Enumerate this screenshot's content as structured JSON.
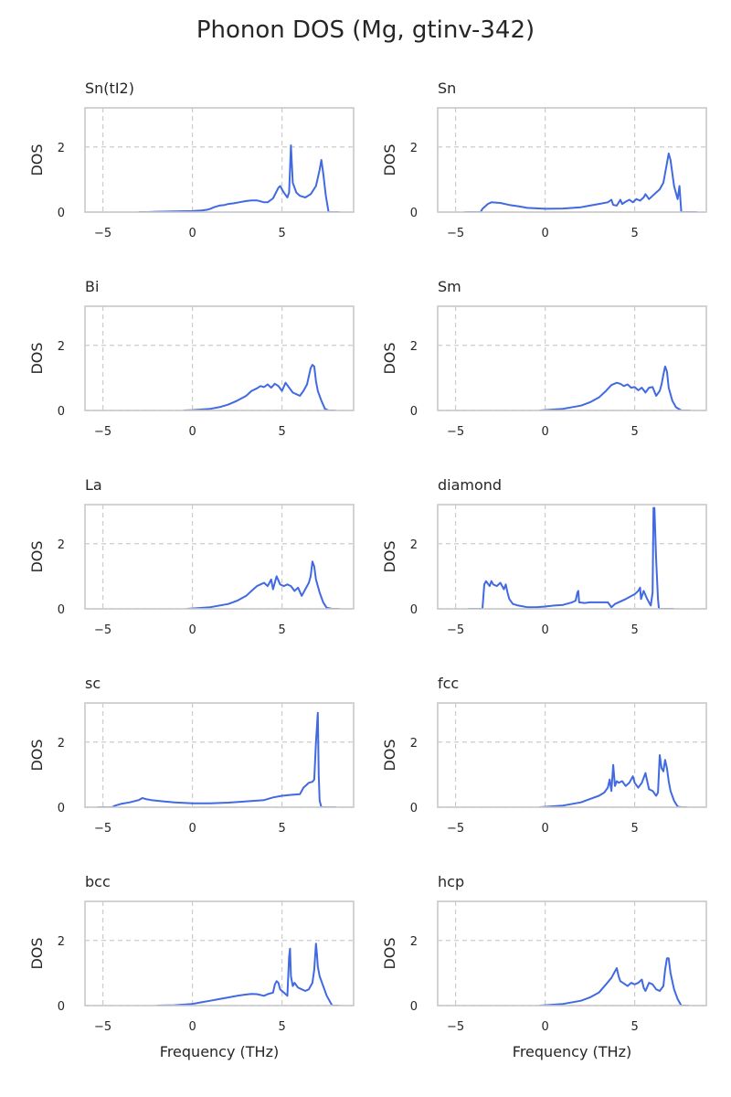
{
  "figure_title": "Phonon DOS (Mg, gtinv-342)",
  "colors": {
    "line": "#4169e1",
    "grid": "#cccccc",
    "spine": "#c8c8c8",
    "text": "#262626"
  },
  "chart_data": [
    {
      "type": "line",
      "title": "Sn(tI2)",
      "xlabel": "",
      "ylabel": "DOS",
      "xlim": [
        -6,
        9
      ],
      "ylim": [
        0,
        3.2
      ],
      "xticks": [
        -5,
        0,
        5
      ],
      "xtick_labels": [
        "−5",
        "0",
        "5"
      ],
      "yticks": [
        0,
        2
      ],
      "ytick_labels": [
        "0",
        "2"
      ],
      "grid": true,
      "x": [
        -3,
        -2.5,
        -2,
        -1,
        0,
        0.5,
        0.8,
        1,
        1.2,
        1.5,
        1.8,
        2,
        2.3,
        2.6,
        3,
        3.3,
        3.6,
        4,
        4.2,
        4.5,
        4.8,
        4.9,
        5.1,
        5.3,
        5.4,
        5.5,
        5.6,
        5.8,
        6,
        6.3,
        6.6,
        6.9,
        7.1,
        7.2,
        7.3,
        7.45,
        7.6,
        7.8,
        8.2
      ],
      "y": [
        0,
        0,
        0.01,
        0.02,
        0.03,
        0.05,
        0.07,
        0.1,
        0.15,
        0.2,
        0.22,
        0.25,
        0.27,
        0.3,
        0.34,
        0.36,
        0.36,
        0.3,
        0.3,
        0.42,
        0.75,
        0.8,
        0.6,
        0.45,
        0.6,
        2.05,
        0.9,
        0.6,
        0.5,
        0.45,
        0.55,
        0.8,
        1.3,
        1.6,
        1.2,
        0.5,
        0,
        0,
        0
      ]
    },
    {
      "type": "line",
      "title": "Sn",
      "xlabel": "",
      "ylabel": "DOS",
      "xlim": [
        -6,
        9
      ],
      "ylim": [
        0,
        3.2
      ],
      "xticks": [
        -5,
        0,
        5
      ],
      "xtick_labels": [
        "−5",
        "0",
        "5"
      ],
      "yticks": [
        0,
        2
      ],
      "ytick_labels": [
        "0",
        "2"
      ],
      "grid": true,
      "x": [
        -4.5,
        -3.6,
        -3.5,
        -3.2,
        -3,
        -2.5,
        -2,
        -1.5,
        -1,
        0,
        1,
        2,
        2.5,
        3,
        3.5,
        3.7,
        3.8,
        4,
        4.2,
        4.3,
        4.5,
        4.7,
        4.9,
        5.1,
        5.3,
        5.5,
        5.6,
        5.8,
        6,
        6.2,
        6.4,
        6.6,
        6.8,
        6.9,
        7,
        7.2,
        7.4,
        7.5,
        7.6,
        7.7,
        8,
        8.5
      ],
      "y": [
        0,
        0,
        0.1,
        0.25,
        0.3,
        0.28,
        0.22,
        0.18,
        0.13,
        0.1,
        0.11,
        0.15,
        0.2,
        0.25,
        0.3,
        0.38,
        0.22,
        0.2,
        0.38,
        0.25,
        0.32,
        0.38,
        0.3,
        0.4,
        0.35,
        0.45,
        0.55,
        0.4,
        0.5,
        0.6,
        0.7,
        0.9,
        1.5,
        1.8,
        1.6,
        0.8,
        0.4,
        0.8,
        0,
        0,
        0,
        0
      ]
    },
    {
      "type": "line",
      "title": "Bi",
      "xlabel": "",
      "ylabel": "DOS",
      "xlim": [
        -6,
        9
      ],
      "ylim": [
        0,
        3.2
      ],
      "xticks": [
        -5,
        0,
        5
      ],
      "xtick_labels": [
        "−5",
        "0",
        "5"
      ],
      "yticks": [
        0,
        2
      ],
      "ytick_labels": [
        "0",
        "2"
      ],
      "grid": true,
      "x": [
        -0.5,
        0,
        1,
        1.5,
        2,
        2.5,
        3,
        3.3,
        3.6,
        3.8,
        4,
        4.2,
        4.4,
        4.6,
        4.8,
        5,
        5.2,
        5.4,
        5.6,
        5.8,
        6,
        6.2,
        6.4,
        6.6,
        6.7,
        6.8,
        6.9,
        7,
        7.2,
        7.4,
        7.6,
        8
      ],
      "y": [
        0,
        0.01,
        0.05,
        0.1,
        0.18,
        0.3,
        0.45,
        0.6,
        0.68,
        0.75,
        0.72,
        0.8,
        0.7,
        0.82,
        0.75,
        0.6,
        0.85,
        0.7,
        0.55,
        0.5,
        0.45,
        0.6,
        0.8,
        1.3,
        1.4,
        1.35,
        0.9,
        0.6,
        0.3,
        0.05,
        0,
        0
      ]
    },
    {
      "type": "line",
      "title": "Sm",
      "xlabel": "",
      "ylabel": "DOS",
      "xlim": [
        -6,
        9
      ],
      "ylim": [
        0,
        3.2
      ],
      "xticks": [
        -5,
        0,
        5
      ],
      "xtick_labels": [
        "−5",
        "0",
        "5"
      ],
      "yticks": [
        0,
        2
      ],
      "ytick_labels": [
        "0",
        "2"
      ],
      "grid": true,
      "x": [
        -0.3,
        0,
        1,
        2,
        2.5,
        3,
        3.4,
        3.7,
        4,
        4.2,
        4.4,
        4.6,
        4.8,
        5,
        5.2,
        5.4,
        5.6,
        5.8,
        6,
        6.2,
        6.4,
        6.5,
        6.6,
        6.7,
        6.8,
        6.9,
        7.1,
        7.3,
        7.6,
        8.1
      ],
      "y": [
        0,
        0.01,
        0.05,
        0.15,
        0.25,
        0.4,
        0.6,
        0.78,
        0.85,
        0.82,
        0.75,
        0.8,
        0.7,
        0.72,
        0.62,
        0.7,
        0.55,
        0.7,
        0.72,
        0.45,
        0.6,
        0.8,
        1.1,
        1.35,
        1.2,
        0.7,
        0.3,
        0.1,
        0,
        0
      ]
    },
    {
      "type": "line",
      "title": "La",
      "xlabel": "",
      "ylabel": "DOS",
      "xlim": [
        -6,
        9
      ],
      "ylim": [
        0,
        3.2
      ],
      "xticks": [
        -5,
        0,
        5
      ],
      "xtick_labels": [
        "−5",
        "0",
        "5"
      ],
      "yticks": [
        0,
        2
      ],
      "ytick_labels": [
        "0",
        "2"
      ],
      "grid": true,
      "x": [
        -0.3,
        0,
        1,
        2,
        2.5,
        3,
        3.4,
        3.6,
        3.8,
        4,
        4.2,
        4.4,
        4.5,
        4.7,
        4.9,
        5.1,
        5.3,
        5.5,
        5.7,
        5.9,
        6.1,
        6.3,
        6.5,
        6.6,
        6.7,
        6.8,
        6.9,
        7.1,
        7.3,
        7.5,
        7.8,
        8.2
      ],
      "y": [
        0,
        0.01,
        0.05,
        0.15,
        0.25,
        0.4,
        0.6,
        0.7,
        0.75,
        0.8,
        0.7,
        0.9,
        0.6,
        1.0,
        0.75,
        0.7,
        0.75,
        0.7,
        0.55,
        0.65,
        0.4,
        0.6,
        0.8,
        1.0,
        1.45,
        1.3,
        0.9,
        0.5,
        0.2,
        0.03,
        0,
        0
      ]
    },
    {
      "type": "line",
      "title": "diamond",
      "xlabel": "",
      "ylabel": "DOS",
      "xlim": [
        -6,
        9
      ],
      "ylim": [
        0,
        3.2
      ],
      "xticks": [
        -5,
        0,
        5
      ],
      "xtick_labels": [
        "−5",
        "0",
        "5"
      ],
      "yticks": [
        0,
        2
      ],
      "ytick_labels": [
        "0",
        "2"
      ],
      "grid": true,
      "x": [
        -4.3,
        -3.5,
        -3.4,
        -3.3,
        -3.1,
        -3,
        -2.9,
        -2.7,
        -2.5,
        -2.3,
        -2.2,
        -2.1,
        -2,
        -1.8,
        -1.5,
        -1,
        -0.5,
        0,
        0.5,
        1,
        1.5,
        1.7,
        1.8,
        1.85,
        1.9,
        2.2,
        2.5,
        3,
        3.5,
        3.7,
        3.9,
        4.5,
        5,
        5.2,
        5.3,
        5.35,
        5.5,
        5.7,
        5.9,
        6,
        6.05,
        6.1,
        6.2,
        6.3,
        6.35,
        6.5,
        7,
        7.2
      ],
      "y": [
        0,
        0,
        0.75,
        0.85,
        0.7,
        0.85,
        0.75,
        0.7,
        0.8,
        0.6,
        0.75,
        0.5,
        0.3,
        0.15,
        0.1,
        0.05,
        0.05,
        0.07,
        0.1,
        0.12,
        0.2,
        0.25,
        0.5,
        0.55,
        0.2,
        0.18,
        0.2,
        0.2,
        0.2,
        0.05,
        0.15,
        0.3,
        0.45,
        0.55,
        0.65,
        0.3,
        0.55,
        0.3,
        0.1,
        0.5,
        3.1,
        3.1,
        1.5,
        0.3,
        0,
        0,
        0,
        0
      ]
    },
    {
      "type": "line",
      "title": "sc",
      "xlabel": "",
      "ylabel": "DOS",
      "xlim": [
        -6,
        9
      ],
      "ylim": [
        0,
        3.2
      ],
      "xticks": [
        -5,
        0,
        5
      ],
      "xtick_labels": [
        "−5",
        "0",
        "5"
      ],
      "yticks": [
        0,
        2
      ],
      "ytick_labels": [
        "0",
        "2"
      ],
      "grid": true,
      "x": [
        -5.3,
        -4.5,
        -4.3,
        -4,
        -3.5,
        -3,
        -2.8,
        -2.6,
        -2.3,
        -2,
        -1.5,
        -1,
        0,
        1,
        2,
        3,
        4,
        4.5,
        5,
        5.5,
        6,
        6.2,
        6.4,
        6.5,
        6.7,
        6.8,
        6.9,
        7,
        7.05,
        7.1,
        7.2,
        7.5,
        8
      ],
      "y": [
        0,
        0,
        0.05,
        0.1,
        0.15,
        0.22,
        0.28,
        0.25,
        0.22,
        0.2,
        0.17,
        0.15,
        0.12,
        0.12,
        0.14,
        0.18,
        0.22,
        0.3,
        0.35,
        0.38,
        0.4,
        0.6,
        0.7,
        0.75,
        0.78,
        0.85,
        2.0,
        2.9,
        1.0,
        0.2,
        0,
        0,
        0
      ]
    },
    {
      "type": "line",
      "title": "fcc",
      "xlabel": "",
      "ylabel": "DOS",
      "xlim": [
        -6,
        9
      ],
      "ylim": [
        0,
        3.2
      ],
      "xticks": [
        -5,
        0,
        5
      ],
      "xtick_labels": [
        "−5",
        "0",
        "5"
      ],
      "yticks": [
        0,
        2
      ],
      "ytick_labels": [
        "0",
        "2"
      ],
      "grid": true,
      "x": [
        -0.3,
        0,
        1,
        2,
        2.5,
        3,
        3.3,
        3.5,
        3.6,
        3.7,
        3.8,
        3.9,
        4,
        4.1,
        4.3,
        4.5,
        4.7,
        4.9,
        5,
        5.2,
        5.4,
        5.6,
        5.7,
        5.8,
        6,
        6.2,
        6.3,
        6.4,
        6.5,
        6.6,
        6.7,
        6.8,
        6.9,
        7,
        7.2,
        7.4,
        7.6,
        7.9
      ],
      "y": [
        0,
        0.01,
        0.05,
        0.15,
        0.25,
        0.35,
        0.45,
        0.6,
        0.85,
        0.5,
        1.3,
        0.65,
        0.8,
        0.75,
        0.8,
        0.65,
        0.75,
        0.95,
        0.75,
        0.6,
        0.75,
        1.05,
        0.8,
        0.55,
        0.5,
        0.35,
        0.45,
        1.6,
        1.2,
        1.1,
        1.45,
        1.2,
        0.8,
        0.5,
        0.2,
        0.02,
        0,
        0
      ]
    },
    {
      "type": "line",
      "title": "bcc",
      "xlabel": "Frequency (THz)",
      "ylabel": "DOS",
      "xlim": [
        -6,
        9
      ],
      "ylim": [
        0,
        3.2
      ],
      "xticks": [
        -5,
        0,
        5
      ],
      "xtick_labels": [
        "−5",
        "0",
        "5"
      ],
      "yticks": [
        0,
        2
      ],
      "ytick_labels": [
        "0",
        "2"
      ],
      "grid": true,
      "x": [
        -2,
        -1,
        0,
        0.5,
        1,
        1.5,
        2,
        2.5,
        3,
        3.3,
        3.6,
        4,
        4.2,
        4.5,
        4.6,
        4.7,
        4.8,
        4.9,
        5.1,
        5.3,
        5.4,
        5.45,
        5.5,
        5.6,
        5.7,
        5.9,
        6.1,
        6.3,
        6.5,
        6.7,
        6.8,
        6.9,
        6.95,
        7,
        7.1,
        7.3,
        7.5,
        7.8,
        8.2
      ],
      "y": [
        0,
        0.01,
        0.05,
        0.1,
        0.15,
        0.2,
        0.25,
        0.3,
        0.34,
        0.36,
        0.35,
        0.3,
        0.35,
        0.4,
        0.65,
        0.75,
        0.7,
        0.5,
        0.4,
        0.3,
        1.5,
        1.75,
        0.9,
        0.6,
        0.7,
        0.55,
        0.5,
        0.45,
        0.5,
        0.7,
        1.1,
        1.9,
        1.6,
        1.2,
        0.9,
        0.6,
        0.3,
        0,
        0
      ]
    },
    {
      "type": "line",
      "title": "hcp",
      "xlabel": "Frequency (THz)",
      "ylabel": "DOS",
      "xlim": [
        -6,
        9
      ],
      "ylim": [
        0,
        3.2
      ],
      "xticks": [
        -5,
        0,
        5
      ],
      "xtick_labels": [
        "−5",
        "0",
        "5"
      ],
      "yticks": [
        0,
        2
      ],
      "ytick_labels": [
        "0",
        "2"
      ],
      "grid": true,
      "x": [
        -0.3,
        0,
        1,
        2,
        2.5,
        3,
        3.4,
        3.7,
        3.9,
        4,
        4.1,
        4.2,
        4.4,
        4.6,
        4.8,
        5,
        5.2,
        5.4,
        5.5,
        5.6,
        5.8,
        6,
        6.2,
        6.4,
        6.6,
        6.7,
        6.8,
        6.9,
        7,
        7.2,
        7.4,
        7.6,
        8
      ],
      "y": [
        0,
        0.01,
        0.05,
        0.15,
        0.25,
        0.4,
        0.65,
        0.85,
        1.05,
        1.15,
        0.9,
        0.75,
        0.68,
        0.6,
        0.7,
        0.65,
        0.7,
        0.8,
        0.55,
        0.45,
        0.7,
        0.65,
        0.5,
        0.45,
        0.6,
        1.1,
        1.45,
        1.45,
        1.0,
        0.5,
        0.2,
        0,
        0
      ]
    }
  ]
}
